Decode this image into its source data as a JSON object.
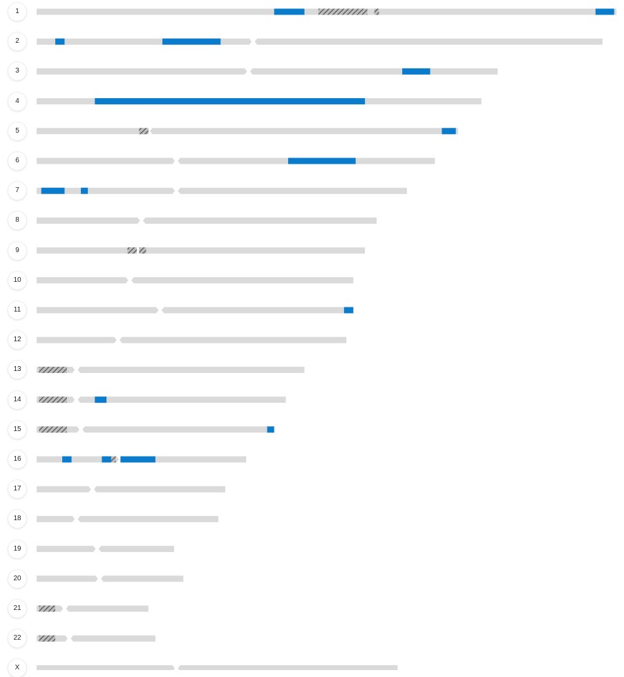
{
  "colors": {
    "arm": "#dadada",
    "highlight": "#0a7ccb",
    "hatch_fg": "#555555",
    "hatch_bg": "#bdbdbd",
    "label_bg": "#ffffff",
    "label_text": "#222222"
  },
  "chromosomes": [
    {
      "label": "1",
      "length": 249,
      "centromere": 124,
      "highlights": [
        [
          102,
          115
        ],
        [
          240,
          248
        ]
      ],
      "hatched": [
        [
          121,
          142
        ],
        [
          145,
          147
        ]
      ]
    },
    {
      "label": "2",
      "length": 243,
      "centromere": 93,
      "highlights": [
        [
          8,
          12
        ],
        [
          54,
          79
        ]
      ],
      "hatched": []
    },
    {
      "label": "3",
      "length": 198,
      "centromere": 91,
      "highlights": [
        [
          157,
          169
        ]
      ],
      "hatched": []
    },
    {
      "label": "4",
      "length": 191,
      "centromere": 50,
      "highlights": [
        [
          25,
          141
        ]
      ],
      "hatched": []
    },
    {
      "label": "5",
      "length": 181,
      "centromere": 48,
      "highlights": [
        [
          174,
          180
        ]
      ],
      "hatched": [
        [
          44,
          48
        ]
      ]
    },
    {
      "label": "6",
      "length": 171,
      "centromere": 60,
      "highlights": [
        [
          108,
          137
        ]
      ],
      "hatched": []
    },
    {
      "label": "7",
      "length": 159,
      "centromere": 60,
      "highlights": [
        [
          2,
          12
        ],
        [
          19,
          22
        ]
      ],
      "hatched": []
    },
    {
      "label": "8",
      "length": 146,
      "centromere": 45,
      "highlights": [],
      "hatched": []
    },
    {
      "label": "9",
      "length": 141,
      "centromere": 44,
      "highlights": [],
      "hatched": [
        [
          39,
          43
        ],
        [
          44,
          47
        ]
      ]
    },
    {
      "label": "10",
      "length": 136,
      "centromere": 40,
      "highlights": [],
      "hatched": []
    },
    {
      "label": "11",
      "length": 135,
      "centromere": 53,
      "highlights": [
        [
          132,
          136
        ]
      ],
      "hatched": []
    },
    {
      "label": "12",
      "length": 133,
      "centromere": 35,
      "highlights": [],
      "hatched": []
    },
    {
      "label": "13",
      "length": 115,
      "centromere": 17,
      "highlights": [],
      "hatched": [
        [
          1,
          13
        ]
      ]
    },
    {
      "label": "14",
      "length": 107,
      "centromere": 17,
      "highlights": [
        [
          25,
          30
        ]
      ],
      "hatched": [
        [
          1,
          13
        ]
      ]
    },
    {
      "label": "15",
      "length": 102,
      "centromere": 19,
      "highlights": [
        [
          99,
          102
        ]
      ],
      "hatched": [
        [
          1,
          13
        ]
      ]
    },
    {
      "label": "16",
      "length": 90,
      "centromere": 36,
      "highlights": [
        [
          11,
          15
        ],
        [
          28,
          32
        ],
        [
          36,
          51
        ]
      ],
      "hatched": [
        [
          30,
          34
        ]
      ]
    },
    {
      "label": "17",
      "length": 81,
      "centromere": 24,
      "highlights": [],
      "hatched": []
    },
    {
      "label": "18",
      "length": 78,
      "centromere": 17,
      "highlights": [],
      "hatched": []
    },
    {
      "label": "19",
      "length": 59,
      "centromere": 26,
      "highlights": [],
      "hatched": []
    },
    {
      "label": "20",
      "length": 63,
      "centromere": 27,
      "highlights": [],
      "hatched": []
    },
    {
      "label": "21",
      "length": 48,
      "centromere": 12,
      "highlights": [],
      "hatched": [
        [
          1,
          8
        ]
      ]
    },
    {
      "label": "22",
      "length": 51,
      "centromere": 14,
      "highlights": [],
      "hatched": [
        [
          1,
          8
        ]
      ]
    },
    {
      "label": "X",
      "length": 155,
      "centromere": 60,
      "highlights": [],
      "hatched": []
    }
  ]
}
